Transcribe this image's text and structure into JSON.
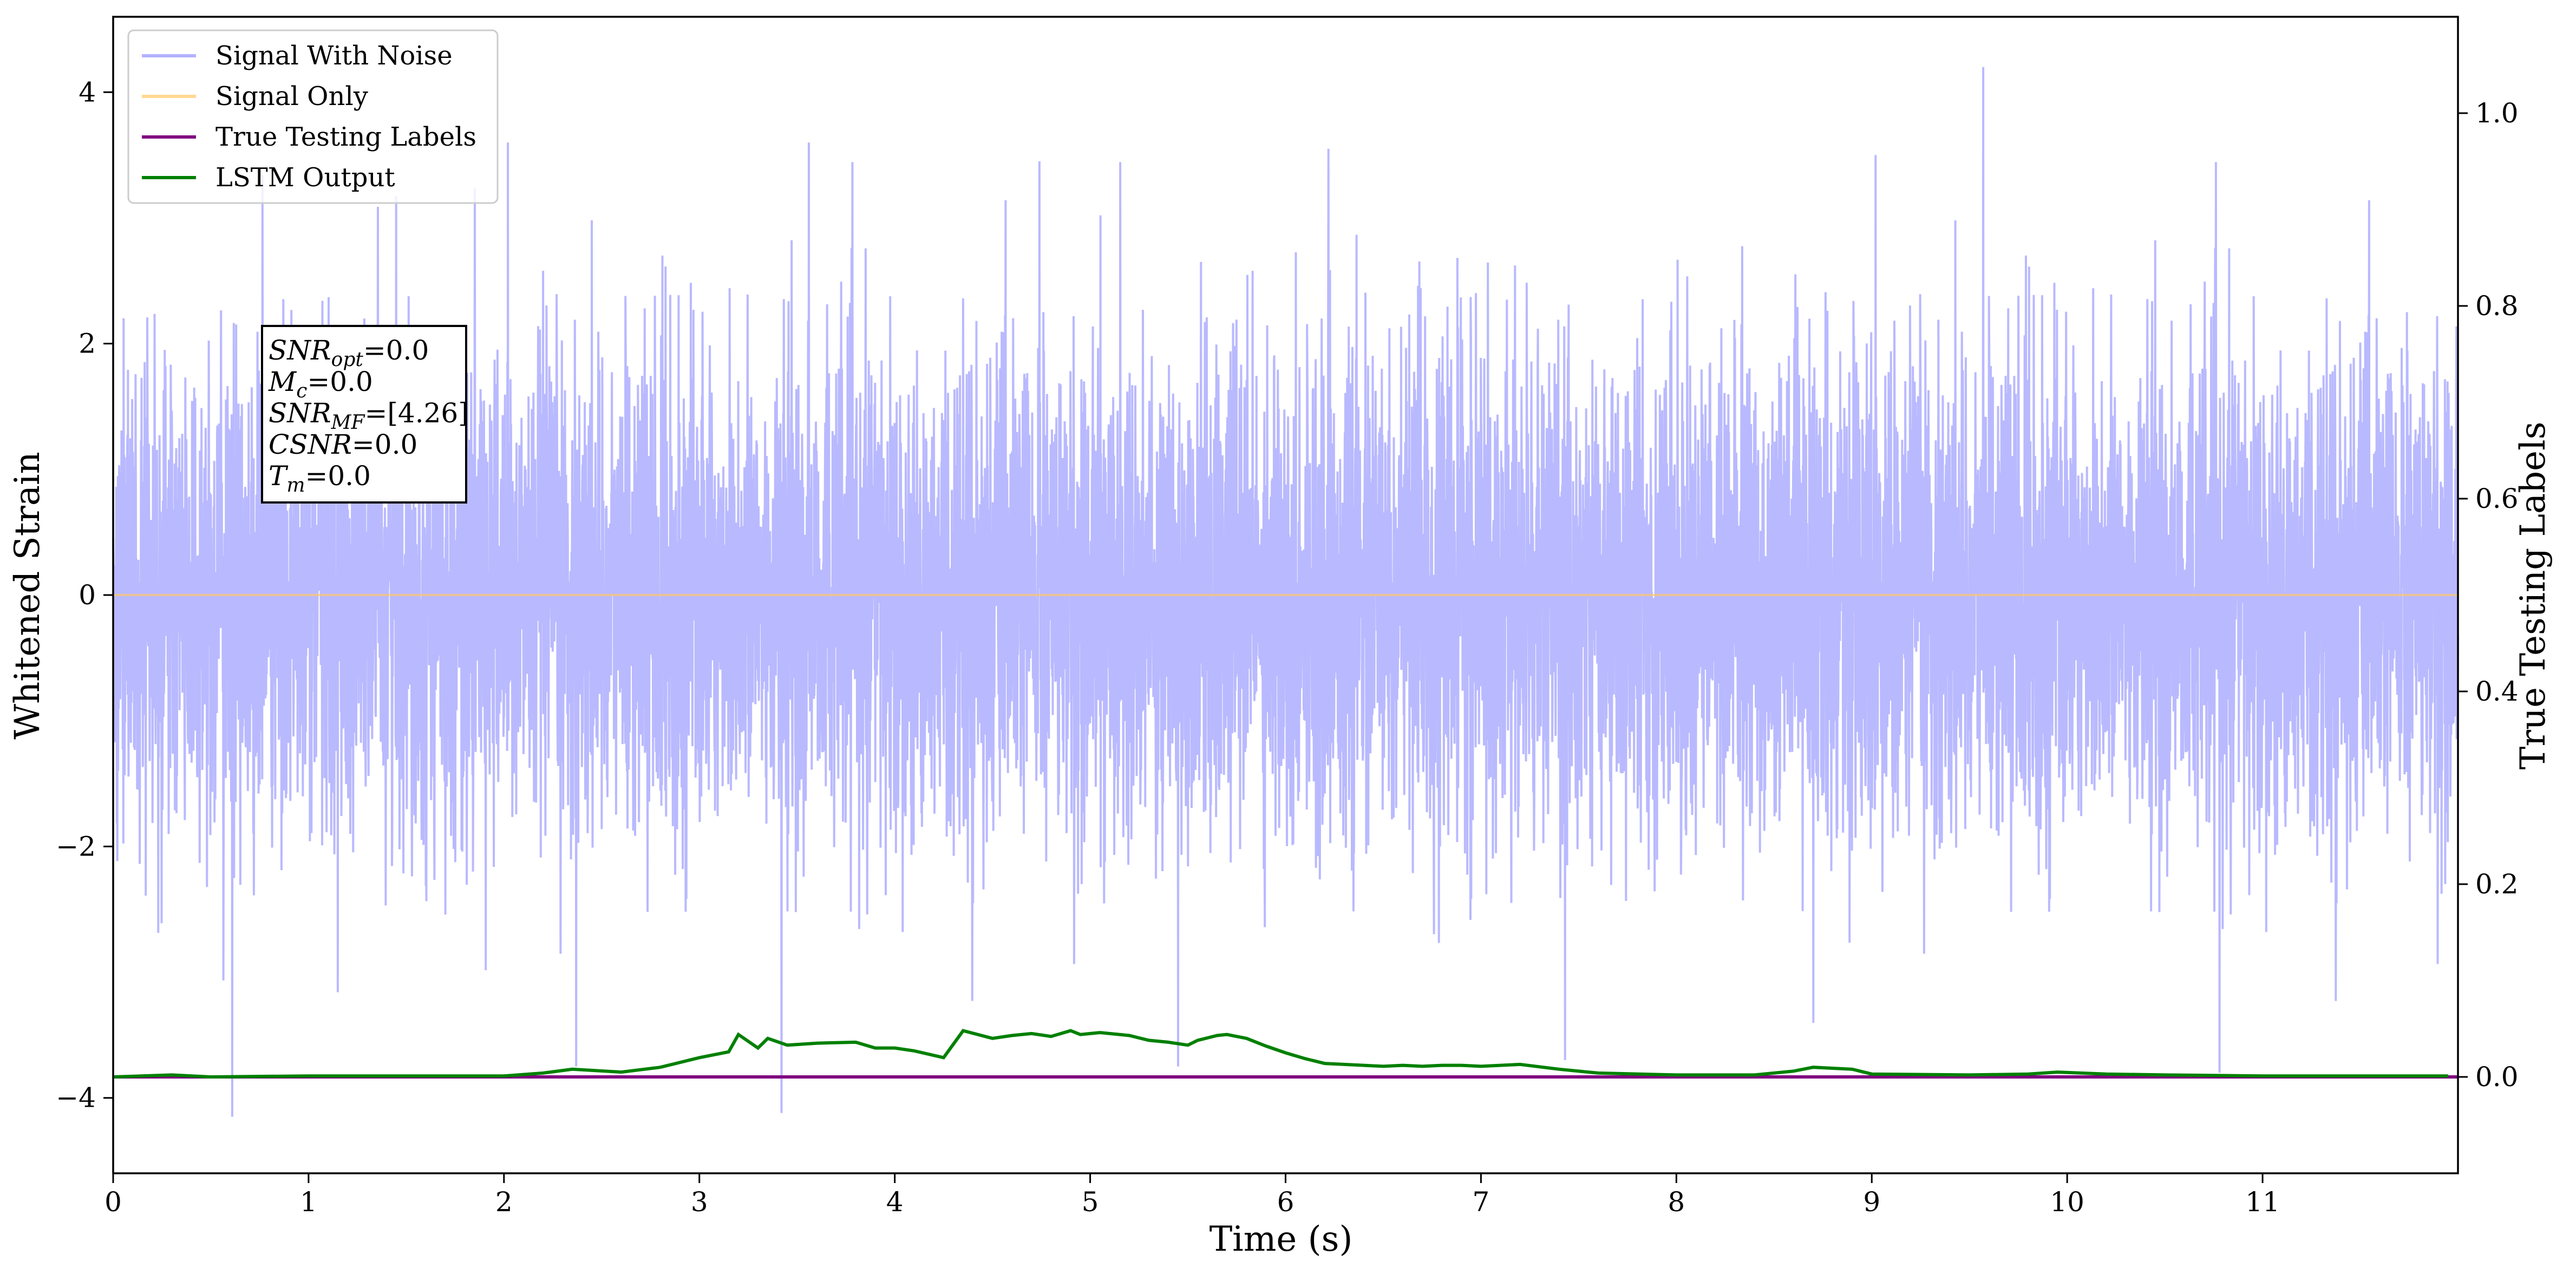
{
  "chart_data": {
    "type": "line",
    "xlabel": "Time (s)",
    "ylabel": "Whitened Strain",
    "y2label": "True Testing Labels",
    "xlim": [
      0,
      12
    ],
    "ylim": [
      -4.6,
      4.6
    ],
    "y2lim": [
      -0.1,
      1.1
    ],
    "x_ticks": [
      0,
      1,
      2,
      3,
      4,
      5,
      6,
      7,
      8,
      9,
      10,
      11
    ],
    "y_ticks": [
      -4,
      -2,
      0,
      2,
      4
    ],
    "y2_ticks": [
      0.0,
      0.2,
      0.4,
      0.6,
      0.8,
      1.0
    ],
    "x_tick_labels": [
      "0",
      "1",
      "2",
      "3",
      "4",
      "5",
      "6",
      "7",
      "8",
      "9",
      "10",
      "11"
    ],
    "y_tick_labels": [
      "−4",
      "−2",
      "0",
      "2",
      "4"
    ],
    "y2_tick_labels": [
      "0.0",
      "0.2",
      "0.4",
      "0.6",
      "0.8",
      "1.0"
    ],
    "grid": false,
    "legend_position": "top-left",
    "series": [
      {
        "name": "Signal With Noise",
        "axis": "left",
        "color": "#7f7fff",
        "noise_envelope": {
          "typical_max": 2.2,
          "typical_min": -2.2,
          "peak_max": 4.2,
          "peak_min": -4.15
        },
        "notable_spikes": [
          {
            "x": 0.61,
            "y": -4.15
          },
          {
            "x": 3.42,
            "y": -4.12
          },
          {
            "x": 9.57,
            "y": 4.2
          },
          {
            "x": 10.78,
            "y": -3.8
          },
          {
            "x": 7.43,
            "y": -3.7
          },
          {
            "x": 5.45,
            "y": -3.75
          },
          {
            "x": 2.37,
            "y": -3.75
          },
          {
            "x": 2.02,
            "y": 3.6
          },
          {
            "x": 3.56,
            "y": 3.6
          },
          {
            "x": 4.74,
            "y": 3.45
          },
          {
            "x": 6.22,
            "y": 3.55
          },
          {
            "x": 9.02,
            "y": 3.5
          }
        ]
      },
      {
        "name": "Signal Only",
        "axis": "left",
        "color": "#ffc864",
        "x": [
          0,
          12
        ],
        "y": [
          0,
          0
        ]
      },
      {
        "name": "True Testing Labels",
        "axis": "right",
        "color": "#800080",
        "x": [
          0,
          12
        ],
        "y": [
          0,
          0
        ]
      },
      {
        "name": "LSTM Output",
        "axis": "right",
        "color": "#008000",
        "x": [
          0,
          0.3,
          0.5,
          1.0,
          1.5,
          2.0,
          2.2,
          2.35,
          2.6,
          2.8,
          3.0,
          3.15,
          3.2,
          3.3,
          3.35,
          3.45,
          3.6,
          3.8,
          3.9,
          4.0,
          4.1,
          4.25,
          4.35,
          4.5,
          4.6,
          4.7,
          4.8,
          4.9,
          4.95,
          5.05,
          5.2,
          5.3,
          5.4,
          5.5,
          5.55,
          5.65,
          5.7,
          5.8,
          5.9,
          6.0,
          6.1,
          6.2,
          6.3,
          6.4,
          6.5,
          6.6,
          6.7,
          6.8,
          6.9,
          7.0,
          7.2,
          7.4,
          7.6,
          8.0,
          8.4,
          8.6,
          8.7,
          8.9,
          9.0,
          9.5,
          9.8,
          9.95,
          10.2,
          10.5,
          11.0,
          11.5,
          11.95
        ],
        "y": [
          0.0,
          0.002,
          0.0,
          0.001,
          0.001,
          0.001,
          0.004,
          0.008,
          0.005,
          0.01,
          0.02,
          0.026,
          0.044,
          0.03,
          0.04,
          0.033,
          0.035,
          0.036,
          0.03,
          0.03,
          0.027,
          0.02,
          0.048,
          0.04,
          0.043,
          0.045,
          0.042,
          0.048,
          0.044,
          0.046,
          0.043,
          0.038,
          0.036,
          0.033,
          0.038,
          0.043,
          0.044,
          0.04,
          0.032,
          0.025,
          0.019,
          0.014,
          0.013,
          0.012,
          0.011,
          0.012,
          0.011,
          0.012,
          0.012,
          0.011,
          0.013,
          0.008,
          0.004,
          0.002,
          0.002,
          0.006,
          0.01,
          0.008,
          0.003,
          0.002,
          0.003,
          0.005,
          0.003,
          0.002,
          0.001,
          0.001,
          0.001
        ]
      }
    ],
    "info_box": [
      {
        "base": "SNR",
        "sub": "opt",
        "value": "=0.0"
      },
      {
        "base": "M",
        "sub": "c",
        "value": "=0.0"
      },
      {
        "base": "SNR",
        "sub": "MF",
        "value": "=[4.26]"
      },
      {
        "base": "CSNR",
        "sub": "",
        "value": "=0.0"
      },
      {
        "base": "T",
        "sub": "m",
        "value": "=0.0"
      }
    ]
  }
}
